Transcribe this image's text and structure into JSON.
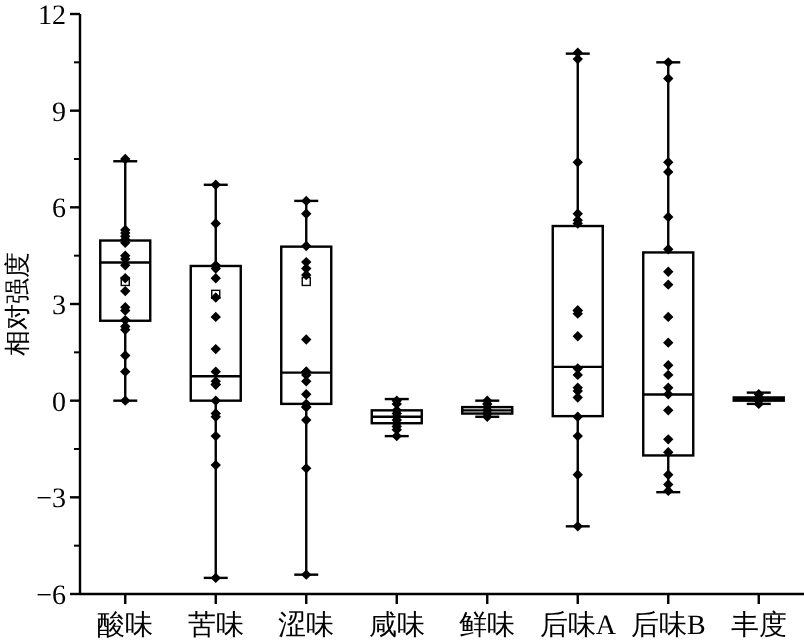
{
  "chart_data": {
    "type": "box",
    "ylabel": "相对强度",
    "categories": [
      "酸味",
      "苦味",
      "涩味",
      "咸味",
      "鲜味",
      "后味A",
      "后味B",
      "丰度"
    ],
    "boxes": [
      {
        "low": 0,
        "q1": 2.48,
        "median": 4.29,
        "q3": 4.97,
        "high": 7.43,
        "mean": 3.7
      },
      {
        "low": -5.5,
        "q1": 0,
        "median": 0.76,
        "q3": 4.18,
        "high": 6.7,
        "mean": 3.3
      },
      {
        "low": -5.4,
        "q1": -0.1,
        "median": 0.87,
        "q3": 4.78,
        "high": 6.2,
        "mean": 3.7
      },
      {
        "low": -1.1,
        "q1": -0.7,
        "median": -0.5,
        "q3": -0.3,
        "high": 0.05
      },
      {
        "low": -0.5,
        "q1": -0.4,
        "median": -0.3,
        "q3": -0.2,
        "high": 0
      },
      {
        "low": -3.9,
        "q1": -0.48,
        "median": 1.05,
        "q3": 5.42,
        "high": 10.77
      },
      {
        "low": -2.84,
        "q1": -1.7,
        "median": 0.19,
        "q3": 4.6,
        "high": 10.5
      },
      {
        "low": -0.1,
        "q1": 0,
        "median": 0.05,
        "q3": 0.1,
        "high": 0.25
      }
    ],
    "series": [
      {
        "type": "scatter",
        "color": "#000000",
        "x": [
          "酸味",
          "酸味",
          "酸味",
          "酸味",
          "酸味",
          "酸味",
          "酸味",
          "酸味",
          "酸味",
          "酸味",
          "酸味",
          "酸味",
          "酸味",
          "酸味",
          "酸味",
          "酸味",
          "酸味",
          "酸味",
          "酸味",
          "苦味",
          "苦味",
          "苦味",
          "苦味",
          "苦味",
          "苦味",
          "苦味",
          "苦味",
          "苦味",
          "苦味",
          "苦味",
          "苦味",
          "苦味",
          "苦味",
          "苦味",
          "苦味",
          "苦味",
          "苦味",
          "涩味",
          "涩味",
          "涩味",
          "涩味",
          "涩味",
          "涩味",
          "涩味",
          "涩味",
          "涩味",
          "涩味",
          "涩味",
          "涩味",
          "涩味",
          "涩味",
          "涩味",
          "涩味",
          "涩味",
          "涩味",
          "咸味",
          "咸味",
          "咸味",
          "咸味",
          "咸味",
          "咸味",
          "咸味",
          "咸味",
          "咸味",
          "咸味",
          "鲜味",
          "鲜味",
          "鲜味",
          "鲜味",
          "鲜味",
          "鲜味",
          "后味A",
          "后味A",
          "后味A",
          "后味A",
          "后味A",
          "后味A",
          "后味A",
          "后味A",
          "后味A",
          "后味A",
          "后味A",
          "后味A",
          "后味A",
          "后味A",
          "后味A",
          "后味A",
          "后味A",
          "后味A",
          "后味A",
          "后味B",
          "后味B",
          "后味B",
          "后味B",
          "后味B",
          "后味B",
          "后味B",
          "后味B",
          "后味B",
          "后味B",
          "后味B",
          "后味B",
          "后味B",
          "后味B",
          "后味B",
          "后味B",
          "后味B",
          "后味B",
          "后味B",
          "后味B",
          "丰度",
          "丰度",
          "丰度",
          "丰度"
        ],
        "values": [
          7.5,
          5.3,
          5.2,
          5.1,
          5.0,
          4.9,
          4.5,
          4.4,
          4.2,
          3.8,
          3.4,
          2.9,
          2.8,
          2.3,
          2.2,
          2.5,
          1.4,
          0.9,
          0,
          6.7,
          5.5,
          4.2,
          4.1,
          3.8,
          3.2,
          2.6,
          1.6,
          0.9,
          0.6,
          0.5,
          0.5,
          0,
          -0.4,
          -0.5,
          -1.1,
          -2.0,
          -5.5,
          6.2,
          5.8,
          4.8,
          4.3,
          3.9,
          4.1,
          1.9,
          0.9,
          0.9,
          0.8,
          0.6,
          0.2,
          -0.1,
          -0.2,
          -0.2,
          -0.6,
          -2.1,
          -5.4,
          0,
          -0.1,
          -0.3,
          -0.4,
          -0.5,
          -0.6,
          -0.7,
          -0.8,
          -0.9,
          -1.1,
          0,
          -0.1,
          -0.2,
          -0.3,
          -0.4,
          -0.5,
          10.8,
          10.6,
          7.4,
          5.8,
          5.6,
          5.5,
          2.8,
          2.8,
          2.7,
          2.0,
          1.0,
          0.3,
          0.4,
          0.1,
          0.8,
          -0.5,
          -1.1,
          -2.3,
          -3.9,
          10.5,
          10.0,
          7.4,
          7.1,
          5.7,
          4.7,
          4.0,
          3.6,
          2.6,
          1.8,
          1.1,
          0.8,
          0.4,
          0.2,
          -0.3,
          -1.2,
          -1.6,
          -2.3,
          -2.6,
          -2.8,
          0.2,
          0.1,
          0,
          -0.1
        ]
      }
    ],
    "marker": "diamond",
    "ylim": [
      -6,
      12
    ],
    "yticks": [
      -6,
      -3,
      0,
      3,
      6,
      9,
      12
    ]
  }
}
